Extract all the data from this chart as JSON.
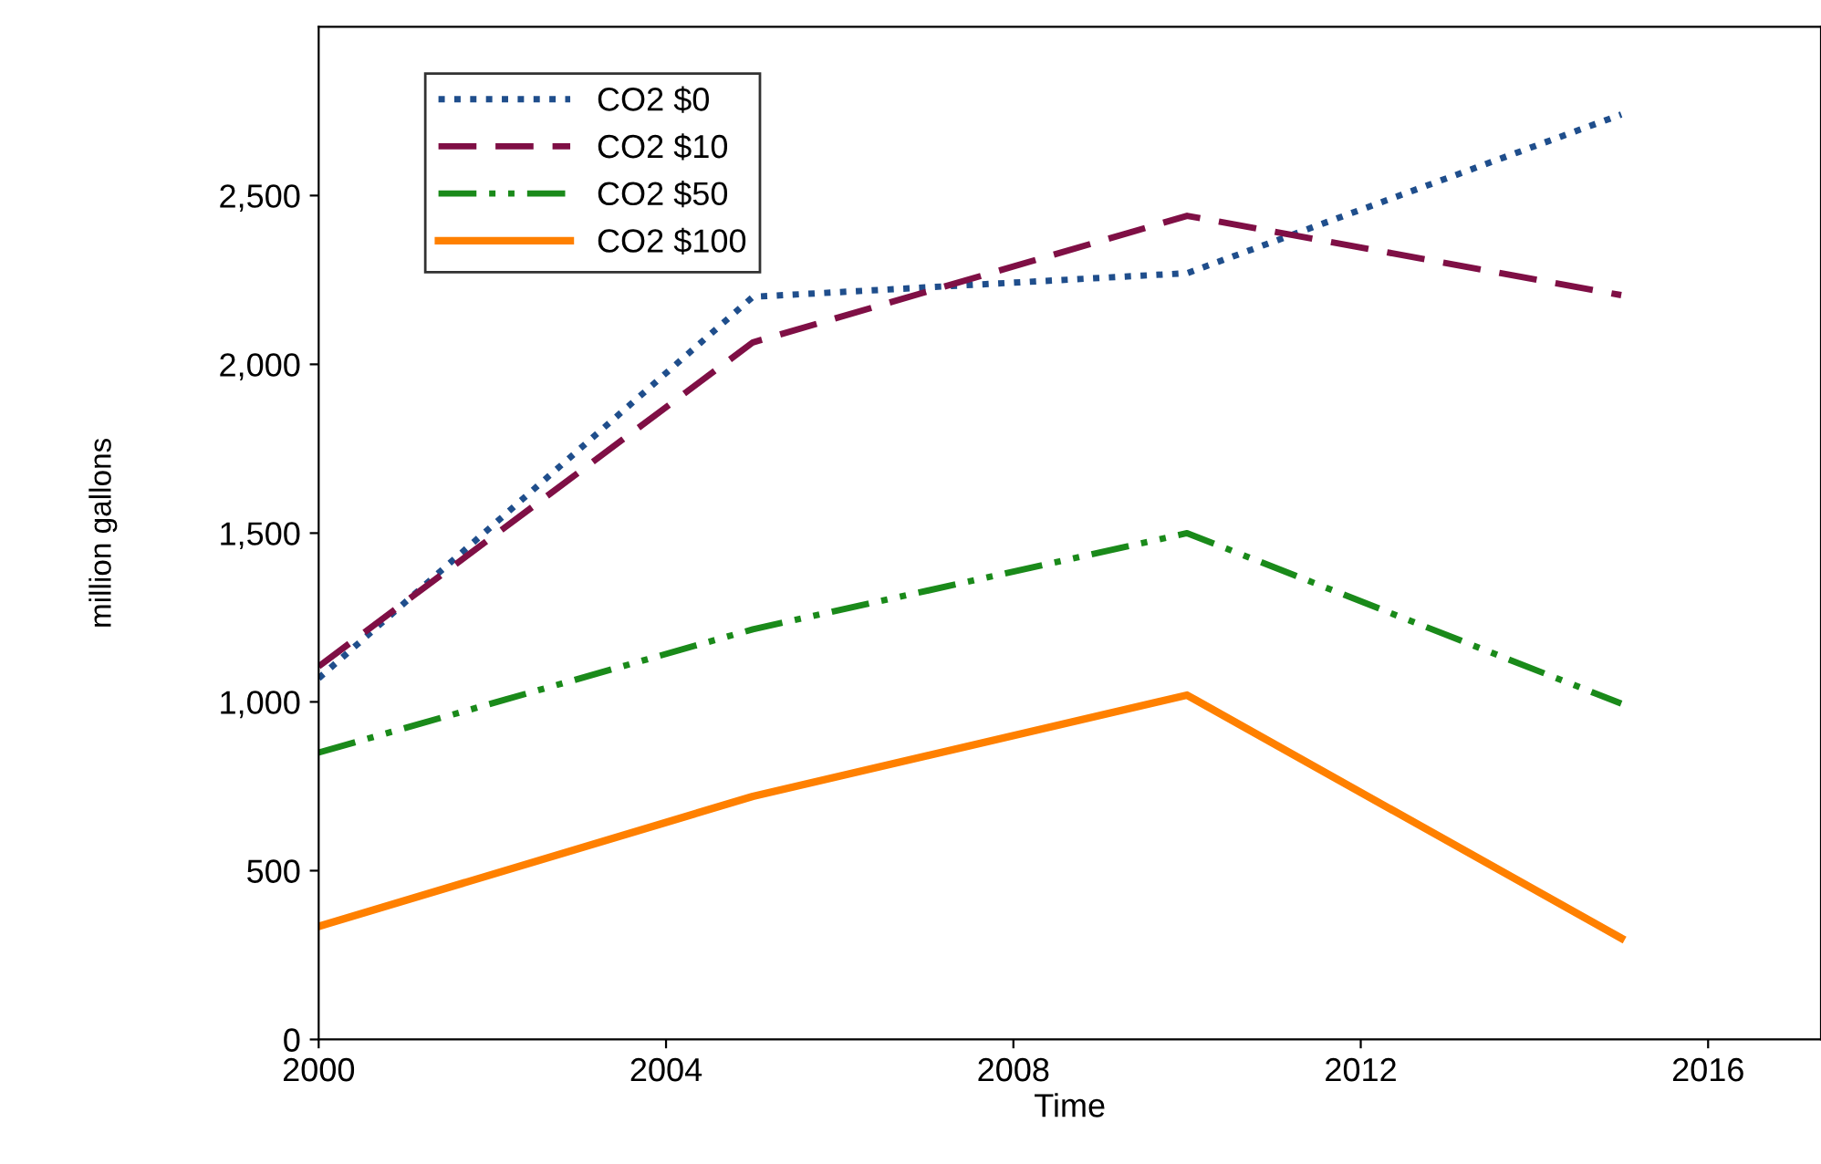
{
  "chart_data": {
    "type": "line",
    "xlabel": "Time",
    "ylabel": "million gallons",
    "x": [
      2000,
      2005,
      2010,
      2015
    ],
    "series": [
      {
        "name": "CO2 $0",
        "color": "#1f4e8c",
        "line_style": "dotted",
        "values": [
          1070,
          2200,
          2270,
          2740
        ]
      },
      {
        "name": "CO2 $10",
        "color": "#7f0f45",
        "line_style": "dashed",
        "values": [
          1105,
          2065,
          2440,
          2205
        ]
      },
      {
        "name": "CO2 $50",
        "color": "#1a8a1a",
        "line_style": "dashdotdot",
        "values": [
          850,
          1215,
          1500,
          995
        ]
      },
      {
        "name": "CO2 $100",
        "color": "#ff8000",
        "line_style": "solid",
        "values": [
          335,
          720,
          1020,
          300
        ]
      }
    ],
    "xlim": [
      2000,
      2017.3
    ],
    "ylim": [
      0,
      3000
    ],
    "xticks": [
      2000,
      2004,
      2008,
      2012,
      2016
    ],
    "yticks": [
      0,
      500,
      {
        "value": 1000,
        "label": "1,000"
      },
      {
        "value": 1500,
        "label": "1,500"
      },
      {
        "value": 2000,
        "label": "2,000"
      },
      {
        "value": 2500,
        "label": "2,500"
      }
    ],
    "grid": false,
    "legend": "top left",
    "marker": "none"
  }
}
